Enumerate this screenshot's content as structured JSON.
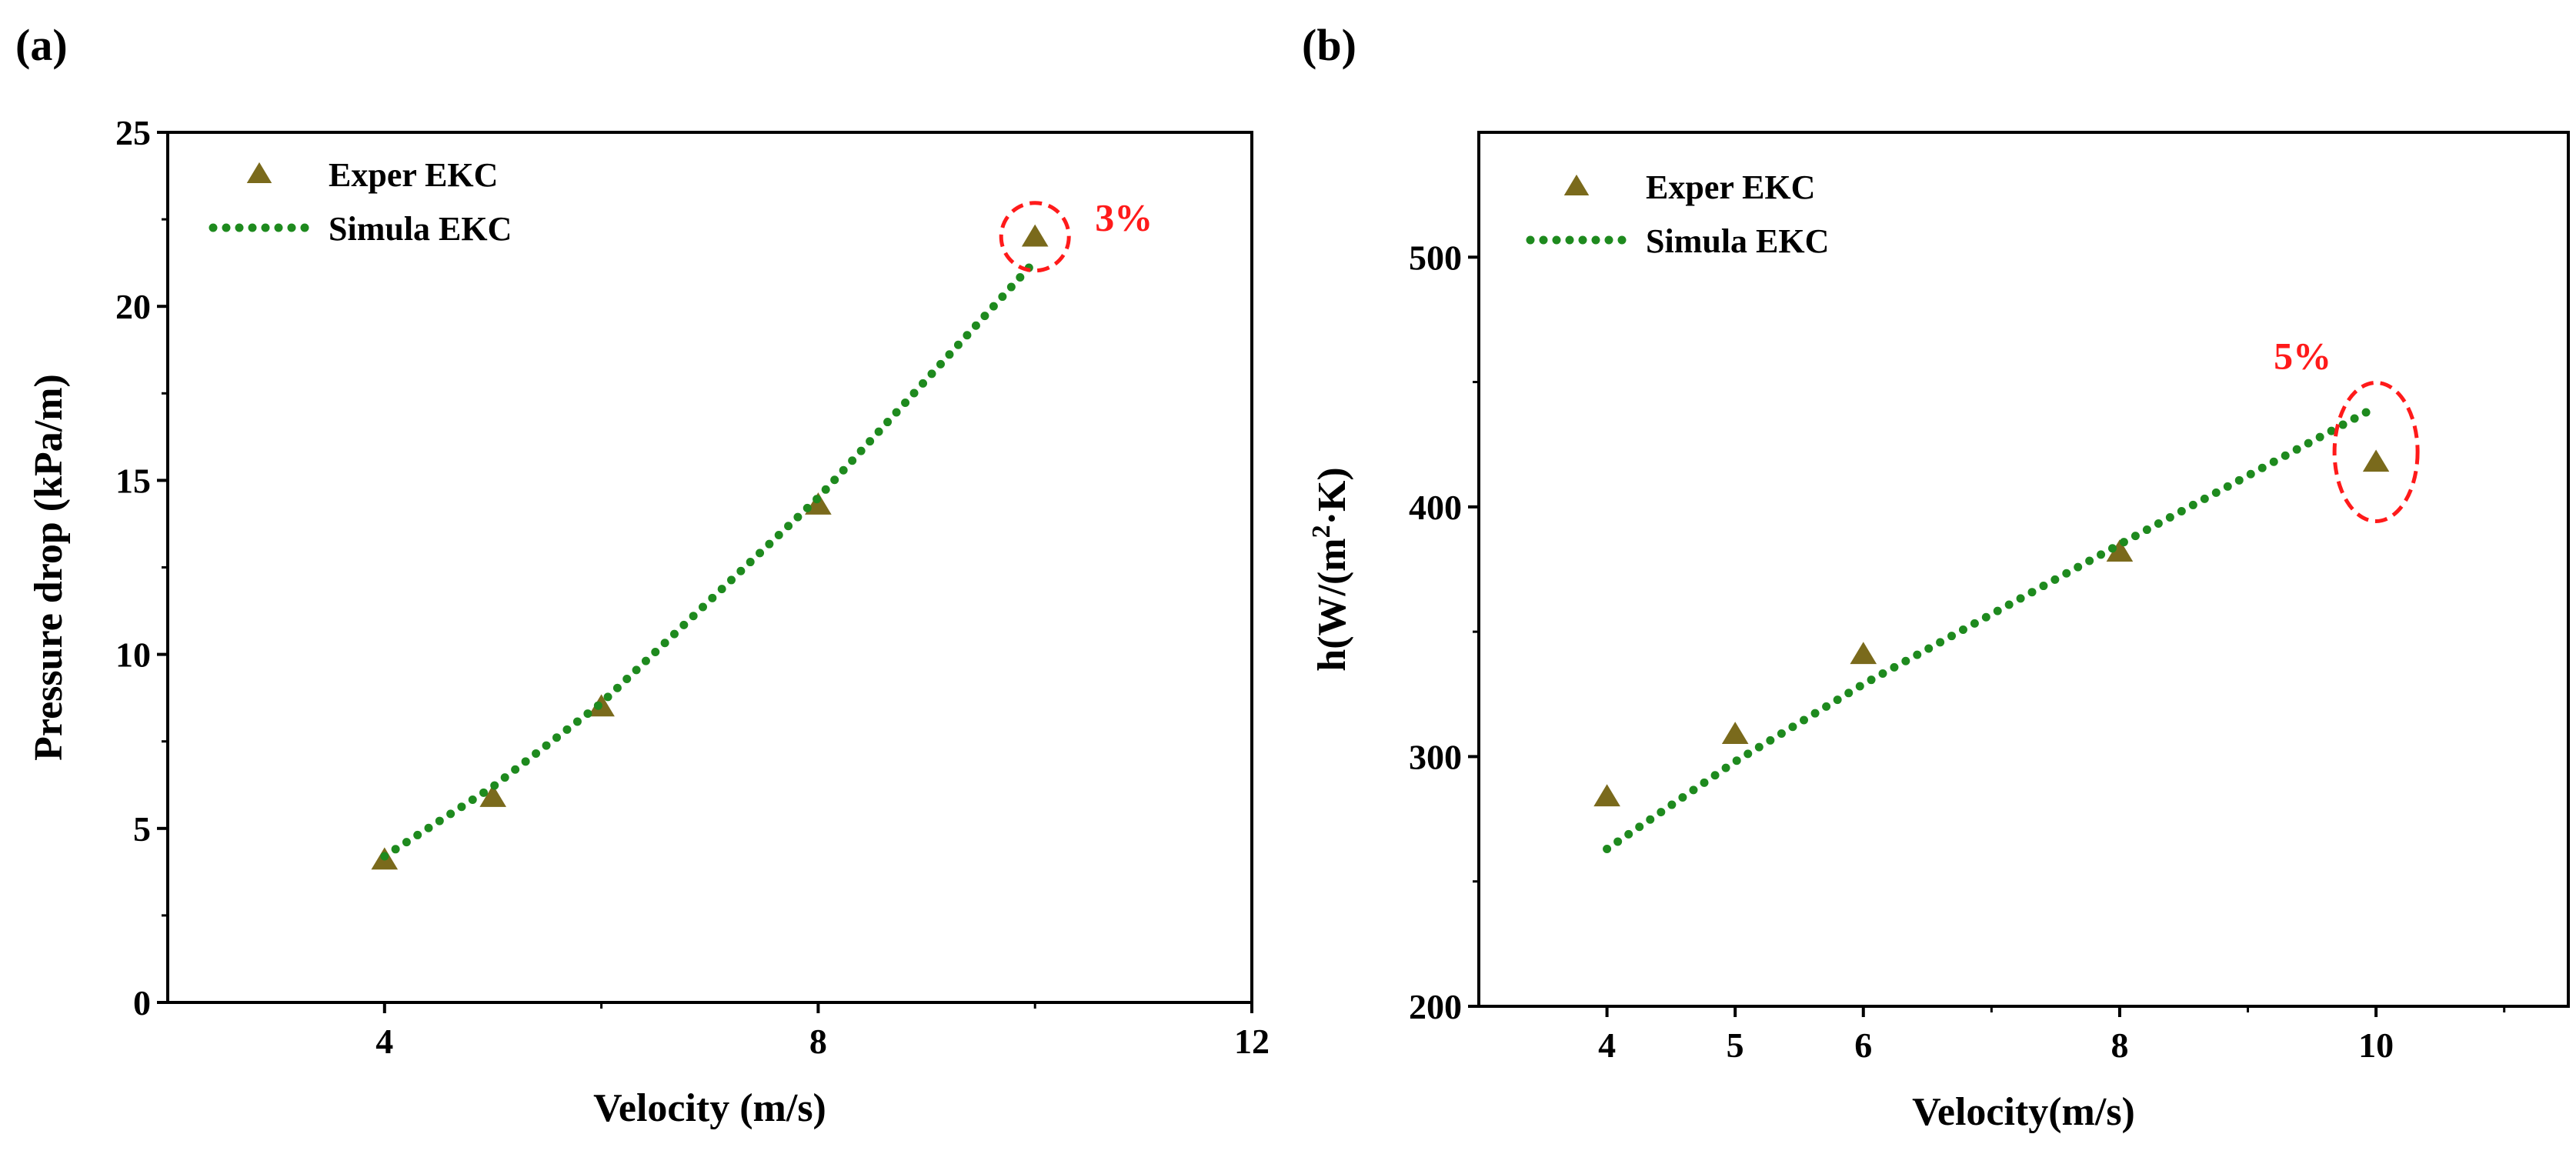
{
  "colors": {
    "marker_fill": "#7a6a1c",
    "marker_edge": "#ffffff",
    "simulation_line": "#1e8a1e",
    "annotation": "#ff1a1a",
    "axis": "#000000"
  },
  "chart_data": [
    {
      "type": "scatter",
      "panel_label": "(a)",
      "title": "",
      "xlabel": "Velocity (m/s)",
      "ylabel": "Pressure drop (kPa/m)",
      "xlim": [
        2,
        12
      ],
      "ylim": [
        0,
        25
      ],
      "xticks": [
        4,
        8,
        12
      ],
      "xtick_labels": [
        "4",
        "8",
        "12"
      ],
      "xminor": [
        6,
        10
      ],
      "yticks": [
        0,
        5,
        10,
        15,
        20,
        25
      ],
      "ytick_labels": [
        "0",
        "5",
        "10",
        "15",
        "20",
        "25"
      ],
      "yminor": [
        2.5,
        7.5,
        12.5,
        17.5,
        22.5
      ],
      "legend_position": "top-left",
      "series": [
        {
          "name": "Exper EKC",
          "kind": "marker",
          "x": [
            4,
            5,
            6,
            8,
            10
          ],
          "y": [
            4.1,
            5.9,
            8.5,
            14.3,
            22.0
          ]
        },
        {
          "name": "Simula EKC",
          "kind": "dotted-line",
          "x": [
            4,
            5,
            6,
            8,
            10
          ],
          "y": [
            4.2,
            6.2,
            8.6,
            14.5,
            21.3
          ]
        }
      ],
      "annotations": [
        {
          "text": "3%",
          "x": 10,
          "y": 22.0,
          "shape": "circle"
        }
      ]
    },
    {
      "type": "scatter",
      "panel_label": "(b)",
      "title": "",
      "xlabel": "Velocity(m/s)",
      "ylabel_prefix": "h(W/(m",
      "ylabel_superscript": "2",
      "ylabel_suffix": "·K)",
      "xlim": [
        3,
        11.5
      ],
      "ylim": [
        200,
        550
      ],
      "xticks": [
        4,
        5,
        6,
        8,
        10
      ],
      "xtick_labels": [
        "4",
        "5",
        "6",
        "8",
        "10"
      ],
      "xminor": [
        7,
        9,
        11
      ],
      "yticks": [
        200,
        300,
        400,
        500
      ],
      "ytick_labels": [
        "200",
        "300",
        "400",
        "500"
      ],
      "yminor": [
        250,
        350,
        450
      ],
      "legend_position": "top-left",
      "series": [
        {
          "name": "Exper EKC",
          "kind": "marker",
          "x": [
            4,
            5,
            6,
            8,
            10
          ],
          "y": [
            284,
            309,
            341,
            382,
            418
          ]
        },
        {
          "name": "Simula EKC",
          "kind": "dotted-line",
          "x": [
            4,
            5,
            6,
            8,
            10
          ],
          "y": [
            263,
            298,
            329,
            385,
            440
          ]
        }
      ],
      "annotations": [
        {
          "text": "5%",
          "x": 10,
          "y": 422,
          "shape": "ellipse"
        }
      ]
    }
  ]
}
